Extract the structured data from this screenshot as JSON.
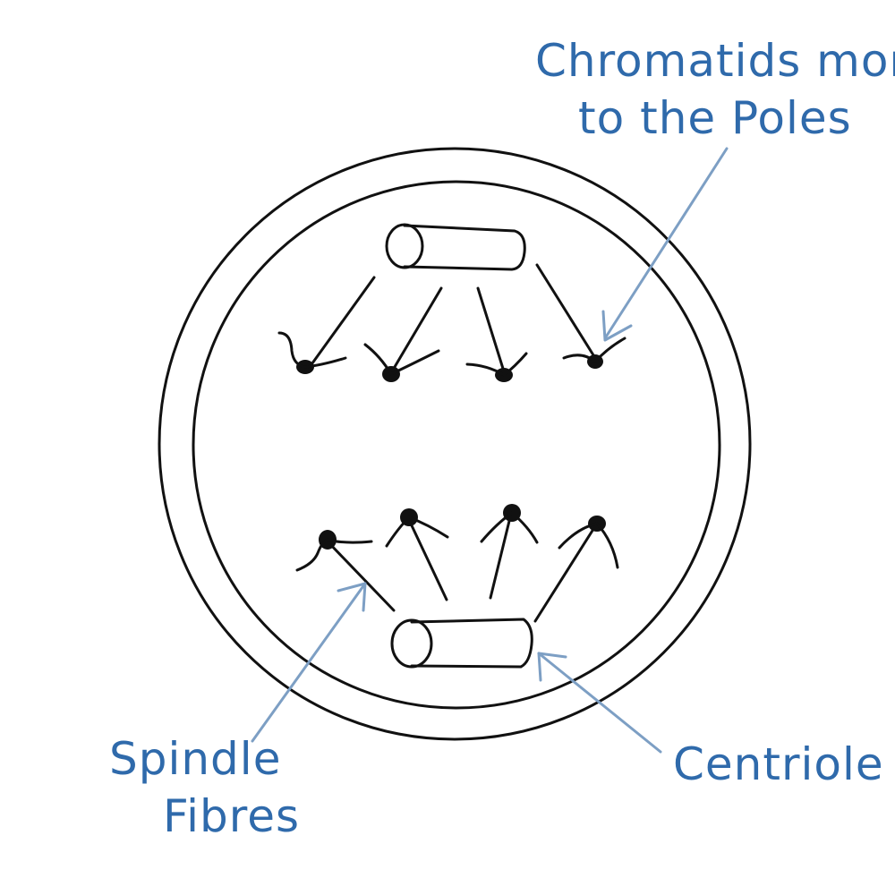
{
  "colors": {
    "ink": "#111111",
    "annotation": "#2f6aab",
    "arrow": "#7d9fc4"
  },
  "labels": {
    "chromatids_line1": "Chromatids more",
    "chromatids_line2": "to the Poles",
    "spindle_line1": "Spindle",
    "spindle_line2": "Fibres",
    "centriole": "Centriole"
  }
}
